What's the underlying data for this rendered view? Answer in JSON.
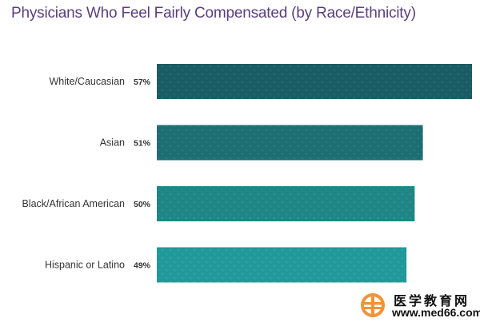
{
  "chart_data": {
    "type": "bar",
    "orientation": "horizontal",
    "title": "Physicians Who Feel Fairly Compensated (by Race/Ethnicity)",
    "categories": [
      "White/Caucasian",
      "Asian",
      "Black/African American",
      "Hispanic or Latino"
    ],
    "values": [
      57,
      51,
      50,
      49
    ],
    "value_labels": [
      "57%",
      "51%",
      "50%",
      "49%"
    ],
    "unit": "%",
    "xlabel": "",
    "ylabel": "",
    "xlim": [
      0,
      57
    ],
    "grid": false,
    "legend": "none",
    "colors": [
      "#1a5c64",
      "#1d6e72",
      "#1f8585",
      "#21989a"
    ]
  },
  "watermark": {
    "chinese_text": "医学教育网",
    "url": "www.med66.com",
    "logo_color": "#f0943a"
  }
}
